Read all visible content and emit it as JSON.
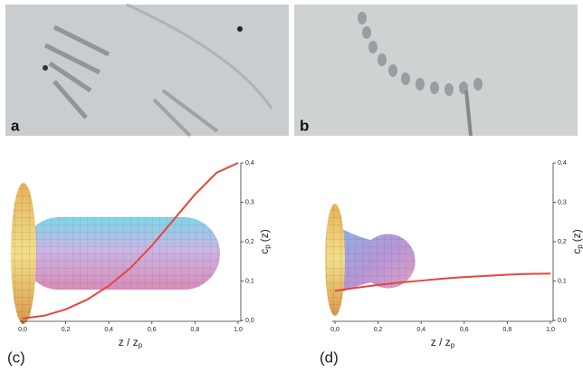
{
  "photos": [
    {
      "label": "a"
    },
    {
      "label": "b"
    }
  ],
  "chart_data": [
    {
      "type": "line",
      "panel_label": "(c)",
      "xlabel": "z / z",
      "xlabel_sub": "p",
      "ylabel": "c",
      "ylabel_sub": "p",
      "ylabel_rest": "(z)",
      "x": [
        0,
        0.1,
        0.2,
        0.3,
        0.4,
        0.5,
        0.6,
        0.7,
        0.8,
        0.9,
        1.0
      ],
      "series": [
        {
          "color": "#e8453c",
          "values": [
            0.005,
            0.012,
            0.028,
            0.053,
            0.088,
            0.133,
            0.19,
            0.255,
            0.32,
            0.375,
            0.4
          ]
        }
      ],
      "xlim": [
        0,
        1
      ],
      "ylim": [
        0,
        0.4
      ],
      "xticks": [
        {
          "value": 0,
          "label": "0,0"
        },
        {
          "value": 0.2,
          "label": "0,2"
        },
        {
          "value": 0.4,
          "label": "0,4"
        },
        {
          "value": 0.6,
          "label": "0,6"
        },
        {
          "value": 0.8,
          "label": "0,8"
        },
        {
          "value": 1,
          "label": "1,0"
        }
      ],
      "yticks": [
        {
          "value": 0,
          "label": "0,0"
        },
        {
          "value": 0.1,
          "label": "0,1"
        },
        {
          "value": 0.2,
          "label": "0,2"
        },
        {
          "value": 0.3,
          "label": "0,3"
        },
        {
          "value": 0.4,
          "label": "0,4"
        }
      ]
    },
    {
      "type": "line",
      "panel_label": "(d)",
      "xlabel": "z / z",
      "xlabel_sub": "p",
      "ylabel": "c",
      "ylabel_sub": "p",
      "ylabel_rest": "(z)",
      "x": [
        0,
        0.1,
        0.2,
        0.3,
        0.4,
        0.5,
        0.6,
        0.7,
        0.8,
        0.9,
        1.0
      ],
      "series": [
        {
          "color": "#e8453c",
          "values": [
            0.075,
            0.083,
            0.09,
            0.096,
            0.101,
            0.106,
            0.11,
            0.113,
            0.116,
            0.118,
            0.119
          ]
        }
      ],
      "xlim": [
        0,
        1
      ],
      "ylim": [
        0,
        0.4
      ],
      "xticks": [
        {
          "value": 0,
          "label": "0,0"
        },
        {
          "value": 0.2,
          "label": "0,2"
        },
        {
          "value": 0.4,
          "label": "0,4"
        },
        {
          "value": 0.6,
          "label": "0,6"
        },
        {
          "value": 0.8,
          "label": "0,8"
        },
        {
          "value": 1,
          "label": "1,0"
        }
      ],
      "yticks": [
        {
          "value": 0,
          "label": "0,0"
        },
        {
          "value": 0.1,
          "label": "0,1"
        },
        {
          "value": 0.2,
          "label": "0,2"
        },
        {
          "value": 0.3,
          "label": "0,3"
        },
        {
          "value": 0.4,
          "label": "0,4"
        }
      ]
    }
  ]
}
